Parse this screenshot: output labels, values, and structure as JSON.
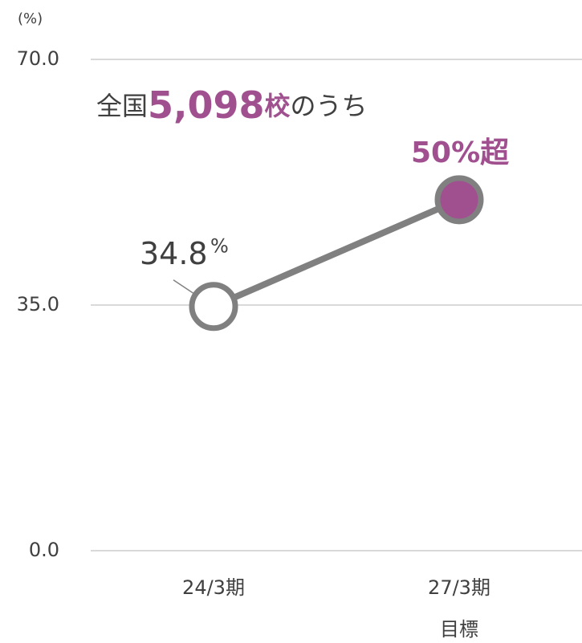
{
  "chart_data": {
    "type": "line",
    "y_axis_label": "(%)",
    "annotation_parts": [
      "全国",
      "5,098",
      "校",
      "のうち"
    ],
    "categories": [
      "24/3期",
      "27/3期"
    ],
    "target_label": "目標",
    "series": [
      {
        "values": [
          34.8,
          50
        ],
        "value_labels": [
          "34.8",
          "50%超"
        ],
        "color": "#808080",
        "marker_fills": [
          "#ffffff",
          "#a0508f"
        ]
      }
    ],
    "value_unit": "%",
    "accent_color": "#a0508f",
    "ylim": [
      0,
      70
    ],
    "yticks": [
      {
        "value": 0,
        "label": "0.0"
      },
      {
        "value": 35,
        "label": "35.0"
      },
      {
        "value": 70,
        "label": "70.0"
      }
    ],
    "grid": true
  }
}
